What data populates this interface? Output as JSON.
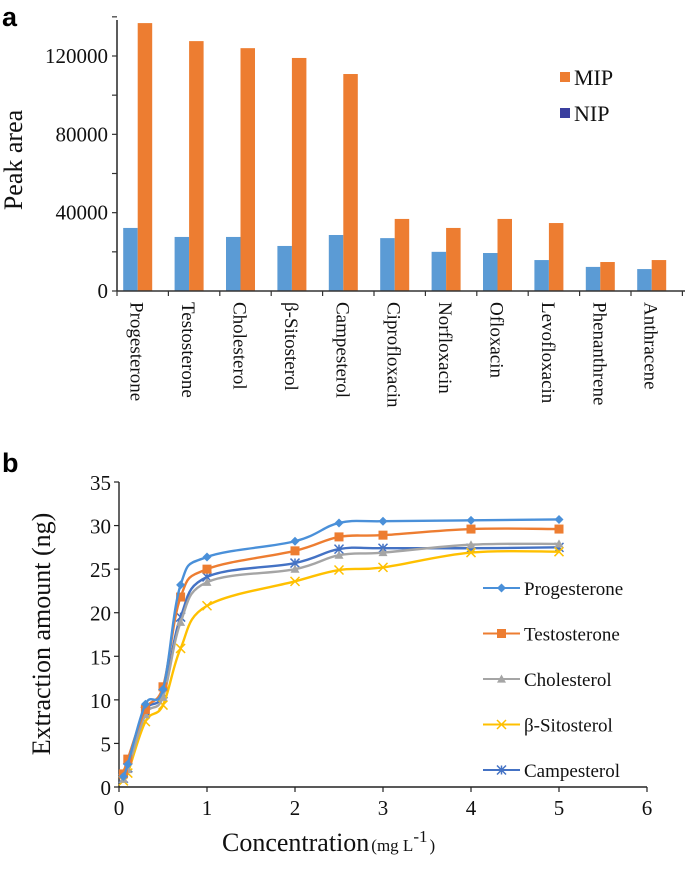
{
  "chart_data": [
    {
      "panel": "a",
      "type": "bar",
      "title": "",
      "xlabel": "",
      "ylabel": "Peak area",
      "ylim": [
        0,
        140000
      ],
      "yticks": [
        0,
        40000,
        80000,
        120000
      ],
      "grid": false,
      "legend_position": "top-right",
      "categories": [
        "Progesterone",
        "Testosterone",
        "Cholesterol",
        "β-Sitosterol",
        "Campesterol",
        "Ciprofloxacin",
        "Norfloxacin",
        "Ofloxacin",
        "Levofloxacin",
        "Phenanthrene",
        "Anthracene"
      ],
      "series": [
        {
          "name": "NIP",
          "color": "#5b9bd5",
          "legend_color": "#3a3f9f",
          "values": [
            32200,
            27600,
            27600,
            23000,
            28600,
            27000,
            20000,
            19400,
            15800,
            12300,
            11200
          ]
        },
        {
          "name": "MIP",
          "color": "#ed7d31",
          "legend_color": "#ed7d31",
          "values": [
            136800,
            127600,
            124000,
            119000,
            110800,
            36800,
            32200,
            36800,
            34700,
            14800,
            15800
          ]
        }
      ],
      "legend_order": [
        "MIP",
        "NIP"
      ]
    },
    {
      "panel": "b",
      "type": "line",
      "title": "",
      "xlabel": "Concentration",
      "xlabel_unit": "(mg L",
      "xlabel_unit_sup": "-1",
      "xlabel_unit_close": ")",
      "ylabel": "Extraction amount (ng)",
      "xlim": [
        0,
        6
      ],
      "ylim": [
        0,
        35
      ],
      "xticks": [
        0,
        1,
        2,
        3,
        4,
        5,
        6
      ],
      "yticks": [
        0,
        5,
        10,
        15,
        20,
        25,
        30,
        35
      ],
      "grid": false,
      "legend_position": "right",
      "x": [
        0.05,
        0.1,
        0.3,
        0.5,
        0.7,
        1,
        2,
        2.5,
        3,
        4,
        5
      ],
      "series": [
        {
          "name": "Progesterone",
          "color": "#4a90d9",
          "marker": "diamond",
          "values": [
            1.2,
            2.6,
            9.5,
            11.2,
            23.2,
            26.4,
            28.2,
            30.3,
            30.5,
            30.6,
            30.7
          ]
        },
        {
          "name": "Testosterone",
          "color": "#ed7d31",
          "marker": "square",
          "values": [
            1.5,
            3.2,
            8.9,
            11.5,
            21.8,
            25.0,
            27.1,
            28.7,
            28.9,
            29.6,
            29.6
          ]
        },
        {
          "name": "Cholesterol",
          "color": "#a5a5a5",
          "marker": "triangle",
          "values": [
            0.9,
            2.0,
            8.3,
            10.3,
            18.9,
            23.5,
            25.0,
            26.6,
            26.9,
            27.8,
            27.9
          ]
        },
        {
          "name": "β-Sitosterol",
          "color": "#ffc000",
          "marker": "x",
          "values": [
            0.7,
            1.6,
            7.5,
            9.4,
            15.9,
            20.8,
            23.6,
            24.9,
            25.2,
            26.9,
            27.0
          ]
        },
        {
          "name": "Campesterol",
          "color": "#4472c4",
          "marker": "star",
          "values": [
            1.0,
            2.2,
            8.7,
            10.7,
            19.5,
            24.1,
            25.7,
            27.3,
            27.4,
            27.4,
            27.5
          ]
        }
      ]
    }
  ],
  "panel_labels": {
    "a": "a",
    "b": "b"
  }
}
